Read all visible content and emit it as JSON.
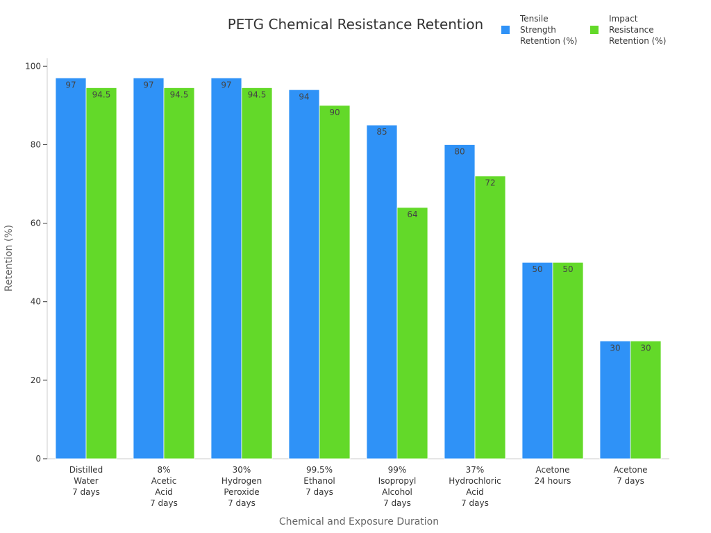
{
  "chart_data": {
    "type": "bar",
    "title": "PETG Chemical Resistance Retention",
    "xlabel": "Chemical and Exposure Duration",
    "ylabel": "Retention (%)",
    "ylim": [
      0,
      102
    ],
    "yticks": [
      0,
      20,
      40,
      60,
      80,
      100
    ],
    "grid": false,
    "legend_position": "top-right",
    "categories": [
      [
        "Distilled",
        "Water",
        "7 days"
      ],
      [
        "8%",
        "Acetic",
        "Acid",
        "7 days"
      ],
      [
        "30%",
        "Hydrogen",
        "Peroxide",
        "7 days"
      ],
      [
        "99.5%",
        "Ethanol",
        "7 days"
      ],
      [
        "99%",
        "Isopropyl",
        "Alcohol",
        "7 days"
      ],
      [
        "37%",
        "Hydrochloric",
        "Acid",
        "7 days"
      ],
      [
        "Acetone",
        "24 hours"
      ],
      [
        "Acetone",
        "7 days"
      ]
    ],
    "series": [
      {
        "name": [
          "Tensile",
          "Strength",
          "Retention (%)"
        ],
        "color": "#2f92f7",
        "values": [
          97,
          97,
          97,
          94,
          85,
          80,
          50,
          30
        ],
        "labels": [
          "97",
          "97",
          "97",
          "94",
          "85",
          "80",
          "50",
          "30"
        ]
      },
      {
        "name": [
          "Impact",
          "Resistance",
          "Retention (%)"
        ],
        "color": "#63d929",
        "values": [
          94.5,
          94.5,
          94.5,
          90,
          64,
          72,
          50,
          30
        ],
        "labels": [
          "94.5",
          "94.5",
          "94.5",
          "90",
          "64",
          "72",
          "50",
          "30"
        ]
      }
    ]
  }
}
